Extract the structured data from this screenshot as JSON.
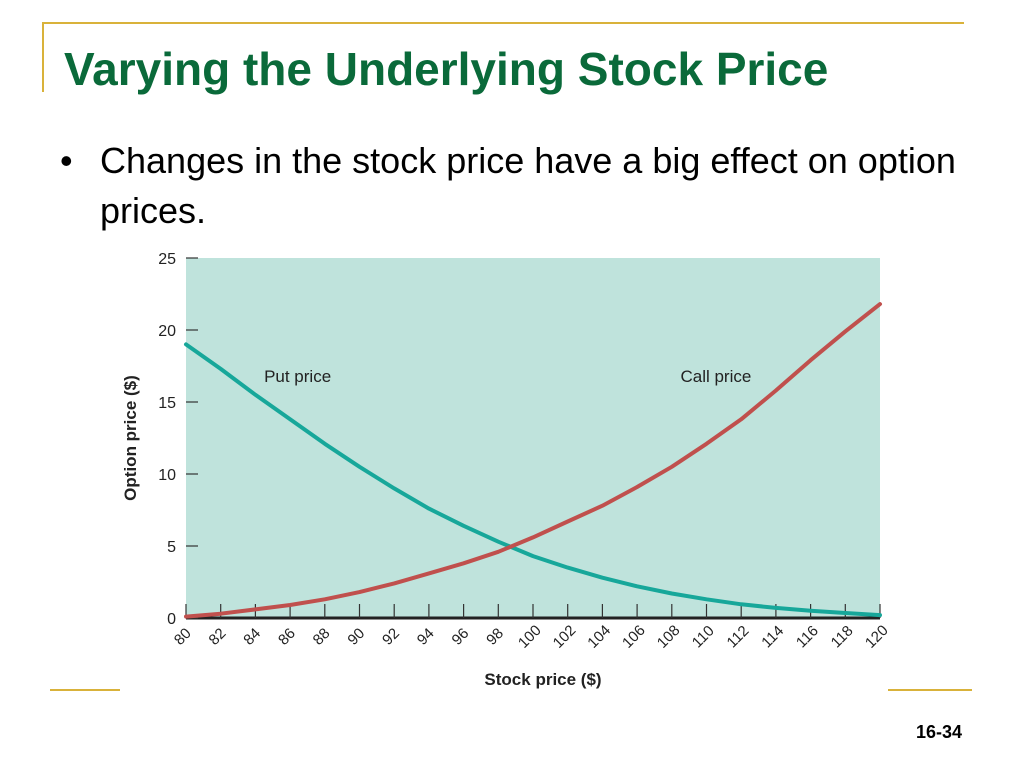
{
  "slide": {
    "title": "Varying the Underlying Stock Price",
    "bullet_marker": "•",
    "bullet_text": "Changes in the stock price have a big effect on option prices.",
    "slide_number": "16-34",
    "colors": {
      "title": "#0a6a3a",
      "frame": "#d9b23a"
    }
  },
  "chart_data": {
    "type": "line",
    "title": "",
    "xlabel": "Stock price ($)",
    "ylabel": "Option price ($)",
    "xlim": [
      80,
      120
    ],
    "ylim": [
      0,
      25
    ],
    "x_ticks": [
      80,
      82,
      84,
      86,
      88,
      90,
      92,
      94,
      96,
      98,
      100,
      102,
      104,
      106,
      108,
      110,
      112,
      114,
      116,
      118,
      120
    ],
    "y_ticks": [
      0,
      5,
      10,
      15,
      20,
      25
    ],
    "grid": false,
    "background_color": "#bfe3dc",
    "series": [
      {
        "name": "Put price",
        "color": "#17a79a",
        "x": [
          80,
          82,
          84,
          86,
          88,
          90,
          92,
          94,
          96,
          98,
          100,
          102,
          104,
          106,
          108,
          110,
          112,
          114,
          116,
          118,
          120
        ],
        "values": [
          19.0,
          17.3,
          15.5,
          13.8,
          12.1,
          10.5,
          9.0,
          7.6,
          6.4,
          5.3,
          4.3,
          3.5,
          2.8,
          2.2,
          1.7,
          1.3,
          0.95,
          0.7,
          0.5,
          0.35,
          0.2
        ]
      },
      {
        "name": "Call price",
        "color": "#c0504d",
        "x": [
          80,
          82,
          84,
          86,
          88,
          90,
          92,
          94,
          96,
          98,
          100,
          102,
          104,
          106,
          108,
          110,
          112,
          114,
          116,
          118,
          120
        ],
        "values": [
          0.1,
          0.3,
          0.6,
          0.9,
          1.3,
          1.8,
          2.4,
          3.1,
          3.8,
          4.6,
          5.6,
          6.7,
          7.8,
          9.1,
          10.5,
          12.1,
          13.8,
          15.8,
          17.9,
          19.9,
          21.8
        ]
      }
    ]
  }
}
